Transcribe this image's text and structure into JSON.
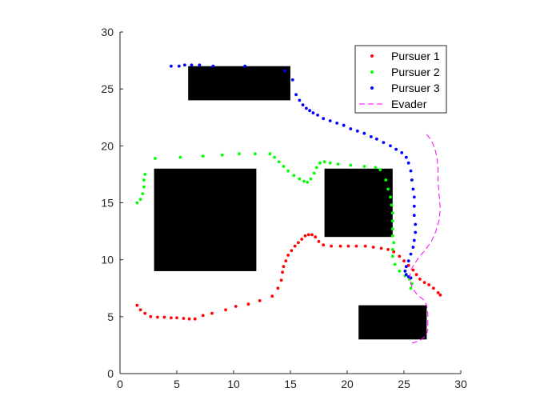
{
  "chart_data": {
    "type": "scatter",
    "xlim": [
      0,
      30
    ],
    "ylim": [
      0,
      30
    ],
    "xticks": [
      0,
      5,
      10,
      15,
      20,
      25,
      30
    ],
    "yticks": [
      0,
      5,
      10,
      15,
      20,
      25,
      30
    ],
    "grid": false,
    "legend_position": "top-right",
    "obstacles": [
      {
        "x0": 6,
        "x1": 15,
        "y0": 24,
        "y1": 27
      },
      {
        "x0": 3,
        "x1": 12,
        "y0": 9,
        "y1": 18
      },
      {
        "x0": 18,
        "x1": 24,
        "y0": 12,
        "y1": 18
      },
      {
        "x0": 21,
        "x1": 27,
        "y0": 3,
        "y1": 6
      }
    ],
    "series": [
      {
        "name": "Pursuer 1",
        "style": "dots",
        "color": "#ff0000",
        "points": [
          [
            1.5,
            6.0
          ],
          [
            1.8,
            5.6
          ],
          [
            2.2,
            5.3
          ],
          [
            2.7,
            5.0
          ],
          [
            3.3,
            4.95
          ],
          [
            3.9,
            4.95
          ],
          [
            4.5,
            4.9
          ],
          [
            5.0,
            4.9
          ],
          [
            5.6,
            4.85
          ],
          [
            6.1,
            4.8
          ],
          [
            6.6,
            4.8
          ],
          [
            7.3,
            5.1
          ],
          [
            8.1,
            5.3
          ],
          [
            9.3,
            5.6
          ],
          [
            10.2,
            5.9
          ],
          [
            11.3,
            6.1
          ],
          [
            12.3,
            6.4
          ],
          [
            13.4,
            6.8
          ],
          [
            13.9,
            7.5
          ],
          [
            14.2,
            8.2
          ],
          [
            14.3,
            8.9
          ],
          [
            14.4,
            9.4
          ],
          [
            14.6,
            9.9
          ],
          [
            14.8,
            10.4
          ],
          [
            15.1,
            10.8
          ],
          [
            15.4,
            11.2
          ],
          [
            15.7,
            11.5
          ],
          [
            16.0,
            11.8
          ],
          [
            16.3,
            12.1
          ],
          [
            16.6,
            12.2
          ],
          [
            16.9,
            12.2
          ],
          [
            17.2,
            12.0
          ],
          [
            17.5,
            11.6
          ],
          [
            17.9,
            11.3
          ],
          [
            18.6,
            11.2
          ],
          [
            19.4,
            11.2
          ],
          [
            20.1,
            11.2
          ],
          [
            20.8,
            11.2
          ],
          [
            21.6,
            11.2
          ],
          [
            22.3,
            11.1
          ],
          [
            23.0,
            11.0
          ],
          [
            23.6,
            10.9
          ],
          [
            24.1,
            10.7
          ],
          [
            24.6,
            10.3
          ],
          [
            25.0,
            9.9
          ],
          [
            25.4,
            9.5
          ],
          [
            25.8,
            9.1
          ],
          [
            26.1,
            8.7
          ],
          [
            26.4,
            8.3
          ],
          [
            26.8,
            8.0
          ],
          [
            27.2,
            7.8
          ],
          [
            27.6,
            7.5
          ],
          [
            28.0,
            7.1
          ],
          [
            28.2,
            6.9
          ]
        ]
      },
      {
        "name": "Pursuer 2",
        "style": "dots",
        "color": "#00ff00",
        "points": [
          [
            1.5,
            15.0
          ],
          [
            1.8,
            15.3
          ],
          [
            2.0,
            15.8
          ],
          [
            2.1,
            16.4
          ],
          [
            2.1,
            17.0
          ],
          [
            2.2,
            17.5
          ],
          [
            3.1,
            18.9
          ],
          [
            5.3,
            19.0
          ],
          [
            7.3,
            19.1
          ],
          [
            9.0,
            19.2
          ],
          [
            10.5,
            19.3
          ],
          [
            11.9,
            19.3
          ],
          [
            13.2,
            19.3
          ],
          [
            13.6,
            19.0
          ],
          [
            14.0,
            18.6
          ],
          [
            14.4,
            18.2
          ],
          [
            14.8,
            17.8
          ],
          [
            15.3,
            17.4
          ],
          [
            15.8,
            17.1
          ],
          [
            16.2,
            16.9
          ],
          [
            16.5,
            16.8
          ],
          [
            16.8,
            17.1
          ],
          [
            17.1,
            17.6
          ],
          [
            17.3,
            18.1
          ],
          [
            17.6,
            18.5
          ],
          [
            18.0,
            18.6
          ],
          [
            18.5,
            18.5
          ],
          [
            19.2,
            18.4
          ],
          [
            20.3,
            18.3
          ],
          [
            21.5,
            18.2
          ],
          [
            22.5,
            18.1
          ],
          [
            22.9,
            17.9
          ],
          [
            23.4,
            17.0
          ],
          [
            23.6,
            16.2
          ],
          [
            23.8,
            15.5
          ],
          [
            23.9,
            14.8
          ],
          [
            24.0,
            14.1
          ],
          [
            24.0,
            13.4
          ],
          [
            24.0,
            12.7
          ],
          [
            24.0,
            12.1
          ],
          [
            24.1,
            11.5
          ],
          [
            24.0,
            10.9
          ],
          [
            24.0,
            10.3
          ],
          [
            24.2,
            9.6
          ],
          [
            24.6,
            9.0
          ],
          [
            25.1,
            8.6
          ],
          [
            25.5,
            8.3
          ],
          [
            25.7,
            7.9
          ],
          [
            25.6,
            7.5
          ]
        ]
      },
      {
        "name": "Pursuer 3",
        "style": "dots",
        "color": "#0000ff",
        "points": [
          [
            4.5,
            27.0
          ],
          [
            5.2,
            27.0
          ],
          [
            5.7,
            27.1
          ],
          [
            6.3,
            27.1
          ],
          [
            7.0,
            27.1
          ],
          [
            8.2,
            27.0
          ],
          [
            11.0,
            27.0
          ],
          [
            14.5,
            26.6
          ],
          [
            15.2,
            25.8
          ],
          [
            15.5,
            24.5
          ],
          [
            15.8,
            24.0
          ],
          [
            16.1,
            23.6
          ],
          [
            16.4,
            23.3
          ],
          [
            16.7,
            23.1
          ],
          [
            17.0,
            22.9
          ],
          [
            17.4,
            22.7
          ],
          [
            17.9,
            22.4
          ],
          [
            18.5,
            22.2
          ],
          [
            19.1,
            22.0
          ],
          [
            19.7,
            21.8
          ],
          [
            20.3,
            21.5
          ],
          [
            20.9,
            21.3
          ],
          [
            21.5,
            21.1
          ],
          [
            22.1,
            20.8
          ],
          [
            22.6,
            20.6
          ],
          [
            23.2,
            20.3
          ],
          [
            23.8,
            20.0
          ],
          [
            24.3,
            19.7
          ],
          [
            24.8,
            19.4
          ],
          [
            25.2,
            19.0
          ],
          [
            25.4,
            18.5
          ],
          [
            25.6,
            17.8
          ],
          [
            25.7,
            17.0
          ],
          [
            25.8,
            16.2
          ],
          [
            25.9,
            15.5
          ],
          [
            25.9,
            14.7
          ],
          [
            25.9,
            13.9
          ],
          [
            26.0,
            13.1
          ],
          [
            26.0,
            12.4
          ],
          [
            25.9,
            11.7
          ],
          [
            25.8,
            11.1
          ],
          [
            25.6,
            10.5
          ],
          [
            25.4,
            9.9
          ],
          [
            25.2,
            9.4
          ],
          [
            25.1,
            9.0
          ],
          [
            25.2,
            8.7
          ],
          [
            25.4,
            8.5
          ],
          [
            25.6,
            8.4
          ]
        ]
      },
      {
        "name": "Evader",
        "style": "dashed",
        "color": "#ff00ff",
        "points": [
          [
            27.0,
            21.0
          ],
          [
            27.4,
            20.5
          ],
          [
            27.7,
            19.8
          ],
          [
            27.9,
            19.0
          ],
          [
            28.0,
            18.0
          ],
          [
            28.0,
            16.8
          ],
          [
            28.1,
            15.6
          ],
          [
            28.2,
            14.5
          ],
          [
            28.1,
            13.5
          ],
          [
            27.8,
            12.5
          ],
          [
            27.4,
            11.6
          ],
          [
            26.9,
            10.9
          ],
          [
            26.3,
            10.2
          ],
          [
            25.9,
            9.6
          ],
          [
            25.6,
            9.1
          ],
          [
            25.5,
            8.5
          ],
          [
            25.6,
            7.9
          ],
          [
            25.8,
            7.4
          ],
          [
            26.2,
            6.9
          ],
          [
            26.7,
            6.5
          ],
          [
            27.0,
            6.0
          ],
          [
            27.1,
            5.3
          ],
          [
            27.1,
            4.5
          ],
          [
            27.1,
            3.8
          ],
          [
            26.9,
            3.3
          ],
          [
            26.4,
            2.9
          ],
          [
            25.8,
            2.7
          ],
          [
            25.5,
            2.7
          ]
        ]
      }
    ]
  }
}
